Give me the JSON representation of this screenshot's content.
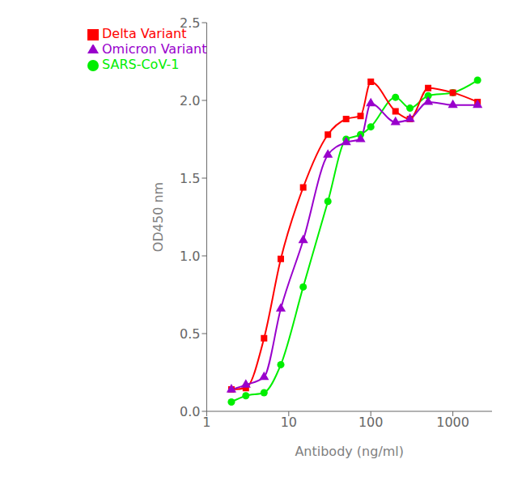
{
  "chart_data": {
    "type": "scatter",
    "title": "",
    "xlabel": "Antibody (ng/ml)",
    "ylabel": "OD450 nm",
    "log": "x",
    "xlim": [
      1,
      3000
    ],
    "xticks": [
      1,
      10,
      100,
      1000
    ],
    "ylim": [
      0.0,
      2.5
    ],
    "yticks": [
      {
        "value": 0.0,
        "label": "0.0"
      },
      0.5,
      {
        "value": 1.0,
        "label": "1.0"
      },
      1.5,
      {
        "value": 2.0,
        "label": "2.0"
      },
      2.5
    ],
    "grid": false,
    "legend": "upper left",
    "series": [
      {
        "name": "SARS-CoV-1",
        "color": "#00ee00",
        "marker": "circle",
        "line_style": "solid",
        "x": [
          2,
          3,
          5,
          8,
          15,
          30,
          50,
          75,
          100,
          200,
          300,
          500,
          1000,
          2000
        ],
        "values": [
          0.06,
          0.1,
          0.12,
          0.3,
          0.8,
          1.35,
          1.75,
          1.78,
          1.83,
          2.02,
          1.95,
          2.03,
          2.05,
          2.13
        ]
      },
      {
        "name": "Delta Variant",
        "color": "#ff0000",
        "marker": "square",
        "line_style": "solid",
        "x": [
          2,
          3,
          5,
          8,
          15,
          30,
          50,
          75,
          100,
          200,
          300,
          500,
          1000,
          2000
        ],
        "values": [
          0.14,
          0.15,
          0.47,
          0.98,
          1.44,
          1.78,
          1.88,
          1.9,
          2.12,
          1.93,
          1.88,
          2.08,
          2.05,
          1.99
        ]
      },
      {
        "name": "Omicron Variant",
        "color": "#9900cc",
        "marker": "triangle",
        "line_style": "solid",
        "x": [
          2,
          3,
          5,
          8,
          15,
          30,
          50,
          75,
          100,
          200,
          300,
          500,
          1000,
          2000
        ],
        "values": [
          0.14,
          0.17,
          0.22,
          0.66,
          1.1,
          1.65,
          1.73,
          1.75,
          1.98,
          1.86,
          1.88,
          1.99,
          1.97,
          1.97
        ]
      }
    ]
  }
}
